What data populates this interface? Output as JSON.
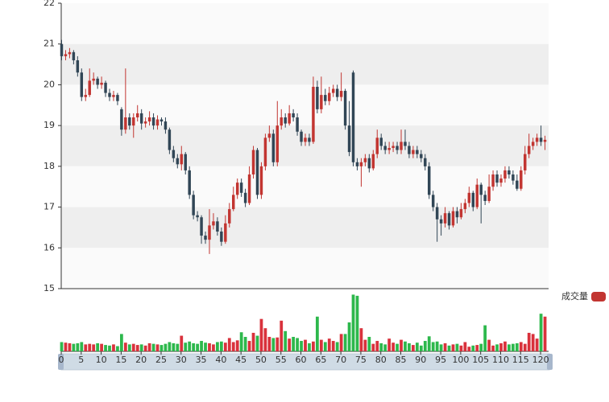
{
  "chart_data": {
    "type": "candlestick",
    "ylim": [
      15,
      22
    ],
    "yticks": [
      15,
      16,
      17,
      18,
      19,
      20,
      21,
      22
    ],
    "xlim": [
      0,
      122
    ],
    "xticks": [
      0,
      5,
      10,
      15,
      20,
      25,
      30,
      35,
      40,
      45,
      50,
      55,
      60,
      65,
      70,
      75,
      80,
      85,
      90,
      95,
      100,
      105,
      110,
      115,
      120
    ],
    "split_area": true,
    "up_color": "#c23531",
    "down_color": "#314656",
    "values": [
      [
        21.0,
        20.7,
        20.6,
        21.1
      ],
      [
        20.7,
        20.75,
        20.6,
        20.85
      ],
      [
        20.75,
        20.8,
        20.65,
        20.9
      ],
      [
        20.8,
        20.6,
        20.5,
        20.85
      ],
      [
        20.6,
        20.3,
        20.2,
        20.7
      ],
      [
        20.3,
        19.7,
        19.6,
        20.4
      ],
      [
        19.7,
        19.75,
        19.6,
        19.9
      ],
      [
        19.75,
        20.1,
        19.7,
        20.4
      ],
      [
        20.1,
        20.15,
        20.0,
        20.3
      ],
      [
        20.15,
        20.0,
        19.9,
        20.2
      ],
      [
        20.0,
        20.05,
        19.9,
        20.2
      ],
      [
        20.05,
        19.8,
        19.7,
        20.1
      ],
      [
        19.8,
        19.7,
        19.6,
        19.9
      ],
      [
        19.7,
        19.75,
        19.6,
        19.85
      ],
      [
        19.75,
        19.6,
        19.5,
        19.8
      ],
      [
        19.4,
        18.9,
        18.75,
        19.45
      ],
      [
        18.9,
        19.2,
        18.8,
        20.4
      ],
      [
        19.2,
        19.0,
        18.9,
        19.3
      ],
      [
        19.0,
        19.2,
        18.7,
        19.3
      ],
      [
        19.2,
        19.3,
        19.1,
        19.5
      ],
      [
        19.3,
        19.05,
        18.9,
        19.4
      ],
      [
        19.05,
        19.1,
        18.95,
        19.2
      ],
      [
        19.1,
        19.2,
        19.0,
        19.35
      ],
      [
        19.2,
        19.0,
        18.9,
        19.3
      ],
      [
        19.0,
        19.15,
        18.9,
        19.25
      ],
      [
        19.15,
        19.1,
        19.0,
        19.2
      ],
      [
        19.1,
        18.9,
        18.8,
        19.2
      ],
      [
        18.9,
        18.4,
        18.3,
        18.95
      ],
      [
        18.4,
        18.2,
        18.1,
        18.5
      ],
      [
        18.2,
        18.05,
        17.95,
        18.3
      ],
      [
        18.05,
        18.3,
        17.9,
        18.5
      ],
      [
        18.3,
        17.9,
        17.8,
        18.35
      ],
      [
        17.9,
        17.3,
        17.2,
        18.0
      ],
      [
        17.3,
        16.8,
        16.7,
        17.4
      ],
      [
        16.8,
        16.75,
        16.65,
        16.9
      ],
      [
        16.75,
        16.3,
        16.1,
        16.8
      ],
      [
        16.3,
        16.2,
        16.1,
        16.4
      ],
      [
        16.2,
        16.55,
        15.85,
        16.95
      ],
      [
        16.55,
        16.65,
        16.45,
        16.85
      ],
      [
        16.65,
        16.4,
        16.3,
        16.75
      ],
      [
        16.4,
        16.15,
        16.05,
        16.5
      ],
      [
        16.15,
        16.6,
        16.1,
        16.8
      ],
      [
        16.6,
        16.95,
        16.5,
        17.1
      ],
      [
        16.95,
        17.3,
        16.9,
        17.5
      ],
      [
        17.3,
        17.6,
        17.2,
        17.7
      ],
      [
        17.6,
        17.35,
        17.25,
        17.7
      ],
      [
        17.35,
        17.1,
        17.0,
        17.45
      ],
      [
        17.1,
        17.8,
        17.05,
        18.0
      ],
      [
        17.8,
        18.4,
        17.7,
        18.5
      ],
      [
        18.4,
        17.3,
        17.2,
        18.45
      ],
      [
        17.3,
        18.0,
        17.2,
        18.1
      ],
      [
        18.0,
        18.7,
        17.9,
        18.8
      ],
      [
        18.7,
        18.8,
        18.6,
        19.0
      ],
      [
        18.8,
        18.1,
        18.0,
        18.9
      ],
      [
        18.1,
        19.0,
        18.0,
        19.6
      ],
      [
        19.0,
        19.2,
        18.9,
        19.4
      ],
      [
        19.2,
        19.05,
        18.95,
        19.3
      ],
      [
        19.05,
        19.3,
        19.0,
        19.5
      ],
      [
        19.3,
        19.2,
        19.1,
        19.4
      ],
      [
        19.2,
        18.85,
        18.75,
        19.3
      ],
      [
        18.85,
        18.6,
        18.5,
        18.9
      ],
      [
        18.6,
        18.7,
        18.5,
        18.8
      ],
      [
        18.7,
        18.6,
        18.5,
        18.8
      ],
      [
        18.6,
        19.95,
        18.55,
        20.2
      ],
      [
        19.95,
        19.4,
        19.3,
        20.1
      ],
      [
        19.4,
        19.75,
        19.3,
        20.2
      ],
      [
        19.75,
        19.6,
        19.5,
        19.9
      ],
      [
        19.6,
        19.8,
        19.5,
        19.95
      ],
      [
        19.8,
        19.9,
        19.7,
        20.0
      ],
      [
        19.9,
        19.7,
        19.6,
        20.0
      ],
      [
        19.7,
        19.85,
        19.6,
        20.3
      ],
      [
        19.85,
        19.0,
        18.9,
        19.9
      ],
      [
        19.0,
        18.35,
        18.25,
        19.6
      ],
      [
        20.3,
        18.1,
        18.0,
        20.35
      ],
      [
        18.1,
        18.0,
        17.9,
        18.2
      ],
      [
        18.0,
        18.1,
        17.5,
        18.2
      ],
      [
        18.1,
        18.2,
        18.0,
        18.3
      ],
      [
        18.2,
        17.95,
        17.85,
        18.3
      ],
      [
        17.95,
        18.3,
        17.9,
        18.4
      ],
      [
        18.3,
        18.7,
        18.2,
        18.9
      ],
      [
        18.7,
        18.5,
        18.4,
        18.8
      ],
      [
        18.5,
        18.4,
        18.3,
        18.6
      ],
      [
        18.4,
        18.45,
        18.3,
        18.6
      ],
      [
        18.45,
        18.5,
        18.35,
        18.6
      ],
      [
        18.5,
        18.4,
        18.3,
        18.6
      ],
      [
        18.4,
        18.6,
        18.3,
        18.9
      ],
      [
        18.6,
        18.5,
        18.4,
        18.9
      ],
      [
        18.5,
        18.3,
        18.2,
        18.6
      ],
      [
        18.3,
        18.4,
        18.2,
        18.5
      ],
      [
        18.4,
        18.3,
        18.2,
        18.5
      ],
      [
        18.3,
        18.2,
        18.1,
        18.4
      ],
      [
        18.2,
        18.0,
        17.9,
        18.3
      ],
      [
        18.0,
        17.3,
        17.2,
        18.1
      ],
      [
        17.3,
        17.0,
        16.9,
        17.4
      ],
      [
        17.0,
        16.7,
        16.15,
        17.1
      ],
      [
        16.7,
        16.6,
        16.3,
        16.8
      ],
      [
        16.6,
        16.85,
        16.5,
        17.0
      ],
      [
        16.85,
        16.55,
        16.45,
        16.9
      ],
      [
        16.55,
        16.9,
        16.5,
        17.0
      ],
      [
        16.9,
        16.75,
        16.6,
        17.0
      ],
      [
        16.75,
        16.95,
        16.7,
        17.1
      ],
      [
        16.95,
        17.1,
        16.85,
        17.2
      ],
      [
        17.1,
        17.35,
        17.0,
        17.5
      ],
      [
        17.35,
        17.0,
        16.9,
        17.4
      ],
      [
        17.0,
        17.55,
        16.95,
        17.7
      ],
      [
        17.55,
        17.3,
        16.6,
        17.6
      ],
      [
        17.3,
        17.15,
        17.05,
        17.4
      ],
      [
        17.15,
        17.5,
        17.1,
        17.8
      ],
      [
        17.5,
        17.8,
        17.4,
        17.9
      ],
      [
        17.8,
        17.6,
        17.5,
        17.9
      ],
      [
        17.6,
        17.7,
        17.5,
        17.8
      ],
      [
        17.7,
        17.9,
        17.6,
        18.0
      ],
      [
        17.9,
        17.8,
        17.7,
        18.0
      ],
      [
        17.8,
        17.65,
        17.55,
        17.9
      ],
      [
        17.65,
        17.45,
        17.4,
        17.8
      ],
      [
        17.45,
        17.9,
        17.4,
        18.0
      ],
      [
        17.9,
        18.3,
        17.8,
        18.5
      ],
      [
        18.3,
        18.5,
        18.2,
        18.8
      ],
      [
        18.5,
        18.6,
        18.4,
        18.7
      ],
      [
        18.6,
        18.7,
        18.5,
        18.8
      ],
      [
        18.7,
        18.6,
        18.5,
        19.0
      ],
      [
        18.6,
        18.65,
        18.4,
        18.75
      ]
    ],
    "volume": {
      "name": "成交量",
      "color": "#c23531",
      "up_color": "#d9323c",
      "down_color": "#2db84c",
      "ylim": [
        0,
        100
      ],
      "values": [
        16,
        15,
        14,
        13,
        14,
        16,
        12,
        13,
        12,
        14,
        13,
        11,
        10,
        12,
        9,
        30,
        15,
        12,
        13,
        11,
        12,
        10,
        14,
        13,
        12,
        11,
        13,
        16,
        14,
        13,
        27,
        15,
        17,
        14,
        13,
        18,
        15,
        14,
        12,
        16,
        17,
        15,
        23,
        16,
        19,
        33,
        25,
        18,
        32,
        27,
        56,
        40,
        25,
        23,
        24,
        53,
        35,
        22,
        25,
        23,
        18,
        20,
        14,
        17,
        60,
        20,
        16,
        22,
        18,
        16,
        30,
        30,
        50,
        98,
        96,
        40,
        20,
        25,
        13,
        18,
        14,
        12,
        22,
        15,
        13,
        20,
        17,
        14,
        11,
        15,
        10,
        18,
        26,
        16,
        17,
        12,
        14,
        10,
        12,
        13,
        10,
        16,
        8,
        10,
        11,
        13,
        45,
        20,
        10,
        12,
        14,
        17,
        12,
        13,
        14,
        16,
        13,
        32,
        30,
        22,
        65,
        60
      ]
    }
  }
}
